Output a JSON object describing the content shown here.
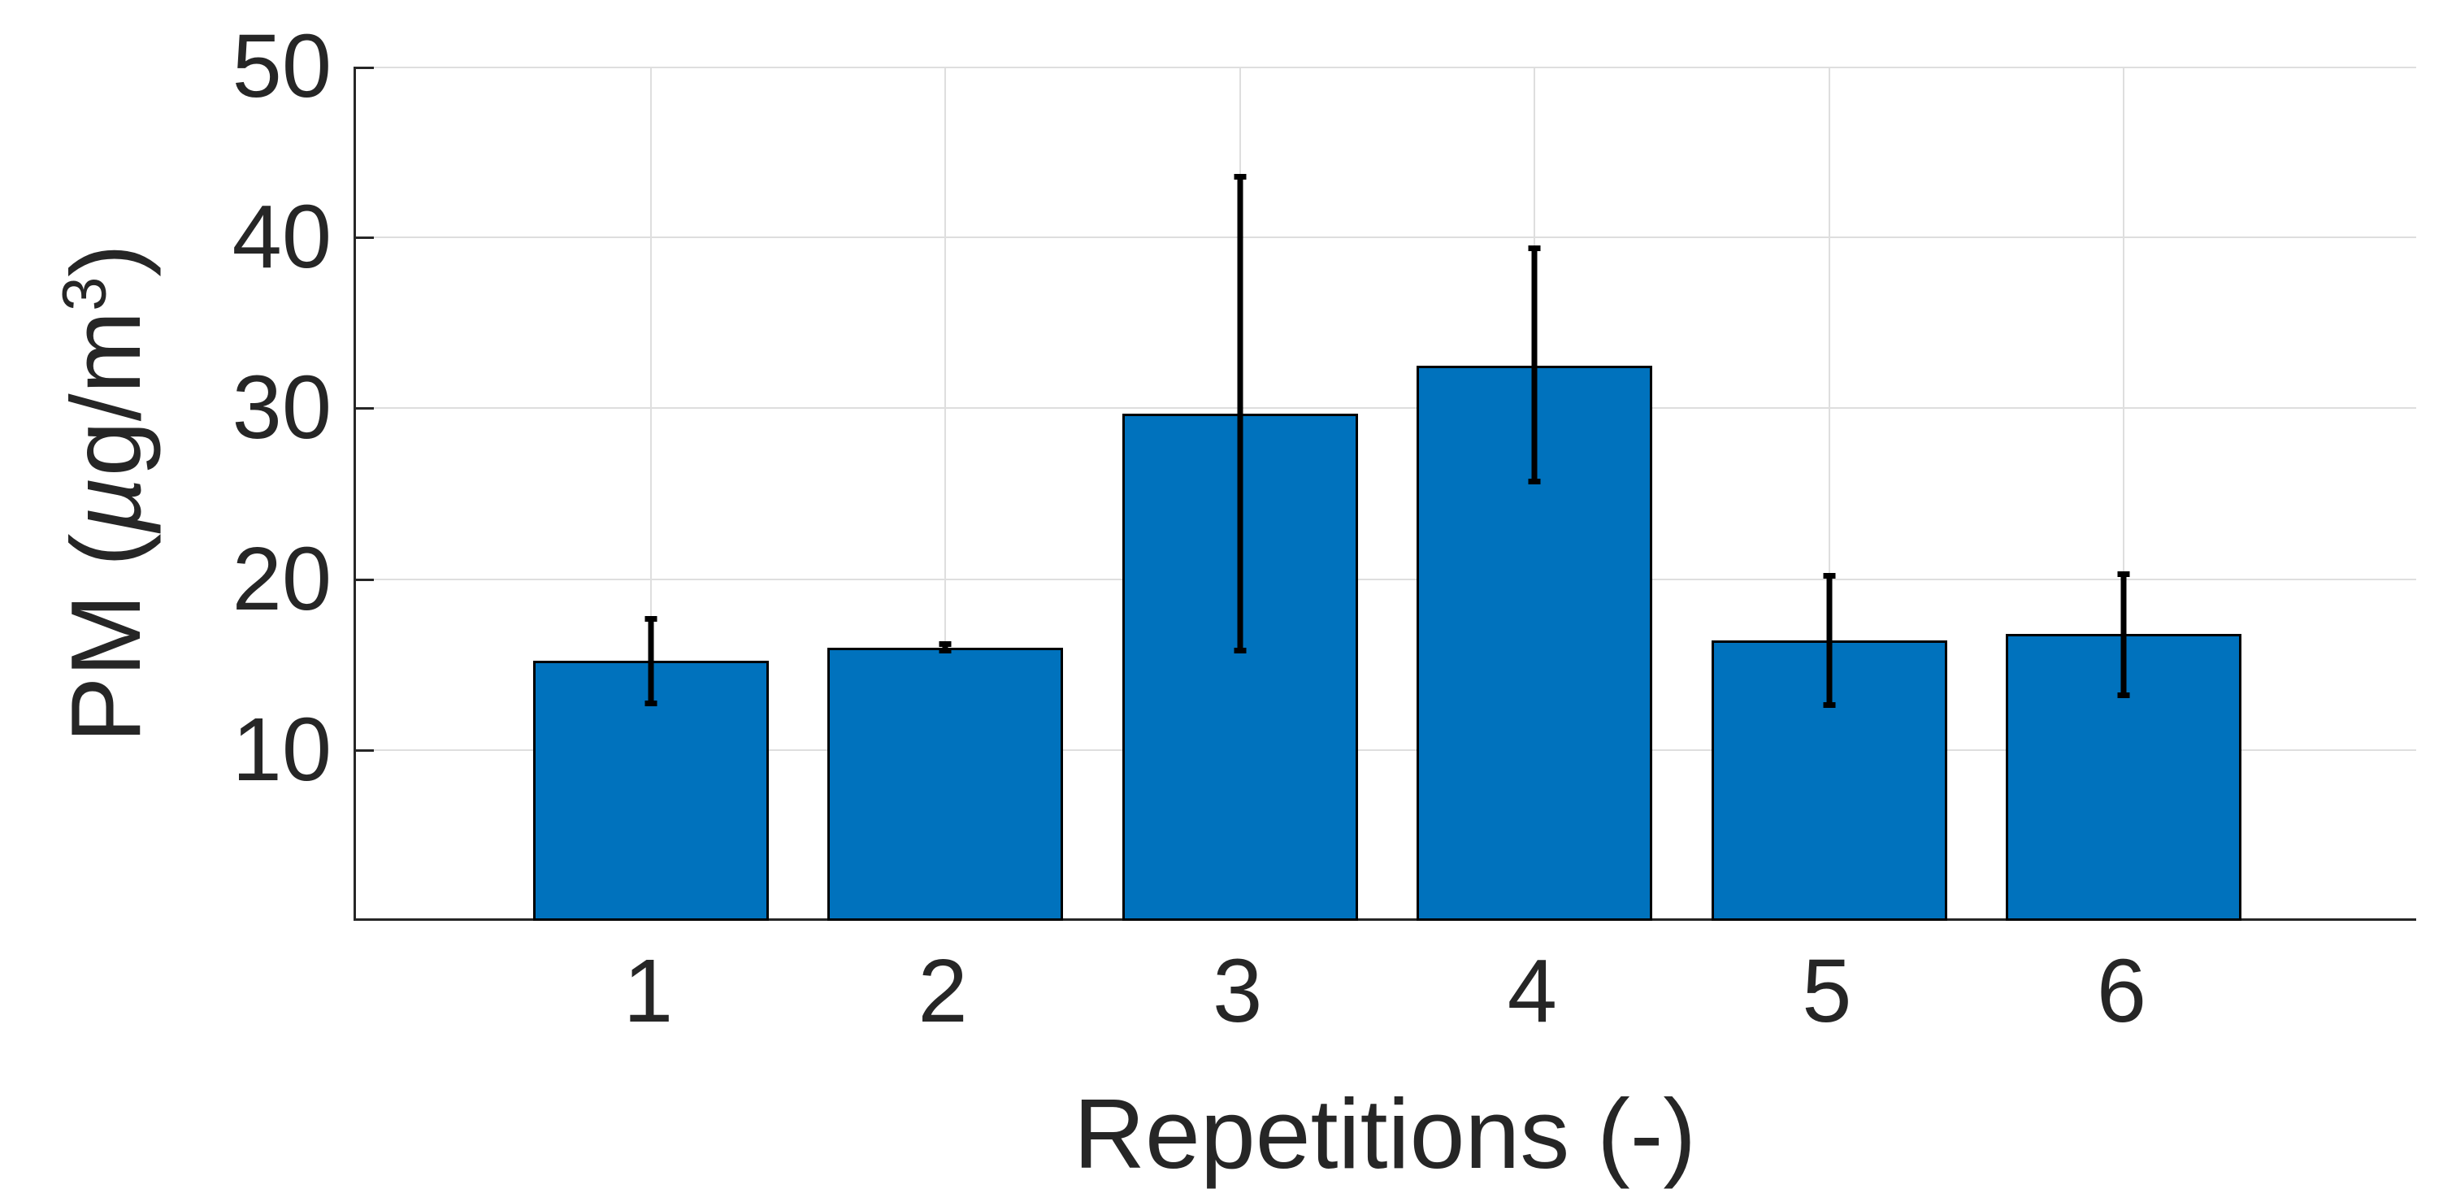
{
  "chart_data": {
    "type": "bar",
    "title": "",
    "xlabel": "Repetitions (-)",
    "ylabel": "PM (µg/m³)",
    "ylabel_parts": {
      "prefix": "PM (",
      "mu": "µ",
      "unit": "g/m",
      "sup": "3",
      "suffix": ")"
    },
    "categories": [
      "1",
      "2",
      "3",
      "4",
      "5",
      "6"
    ],
    "values": [
      15.2,
      16.0,
      29.7,
      32.5,
      16.4,
      16.8
    ],
    "error_upper": [
      17.7,
      16.2,
      43.6,
      39.4,
      20.2,
      20.3
    ],
    "error_lower": [
      12.7,
      15.8,
      15.8,
      25.7,
      12.6,
      13.2
    ],
    "yticks": [
      10,
      20,
      30,
      40,
      50
    ],
    "ylim": [
      0,
      50
    ],
    "xlim": [
      0,
      7
    ],
    "bar_width_fraction": 0.8,
    "grid": true,
    "legend": "none",
    "bar_color": "#0072BD",
    "bar_edge_color": "#000000",
    "error_color": "#000000",
    "axis_color": "#262626",
    "grid_color": "#DEDEDE",
    "text_color": "#262626",
    "background_color": "#FFFFFF"
  }
}
